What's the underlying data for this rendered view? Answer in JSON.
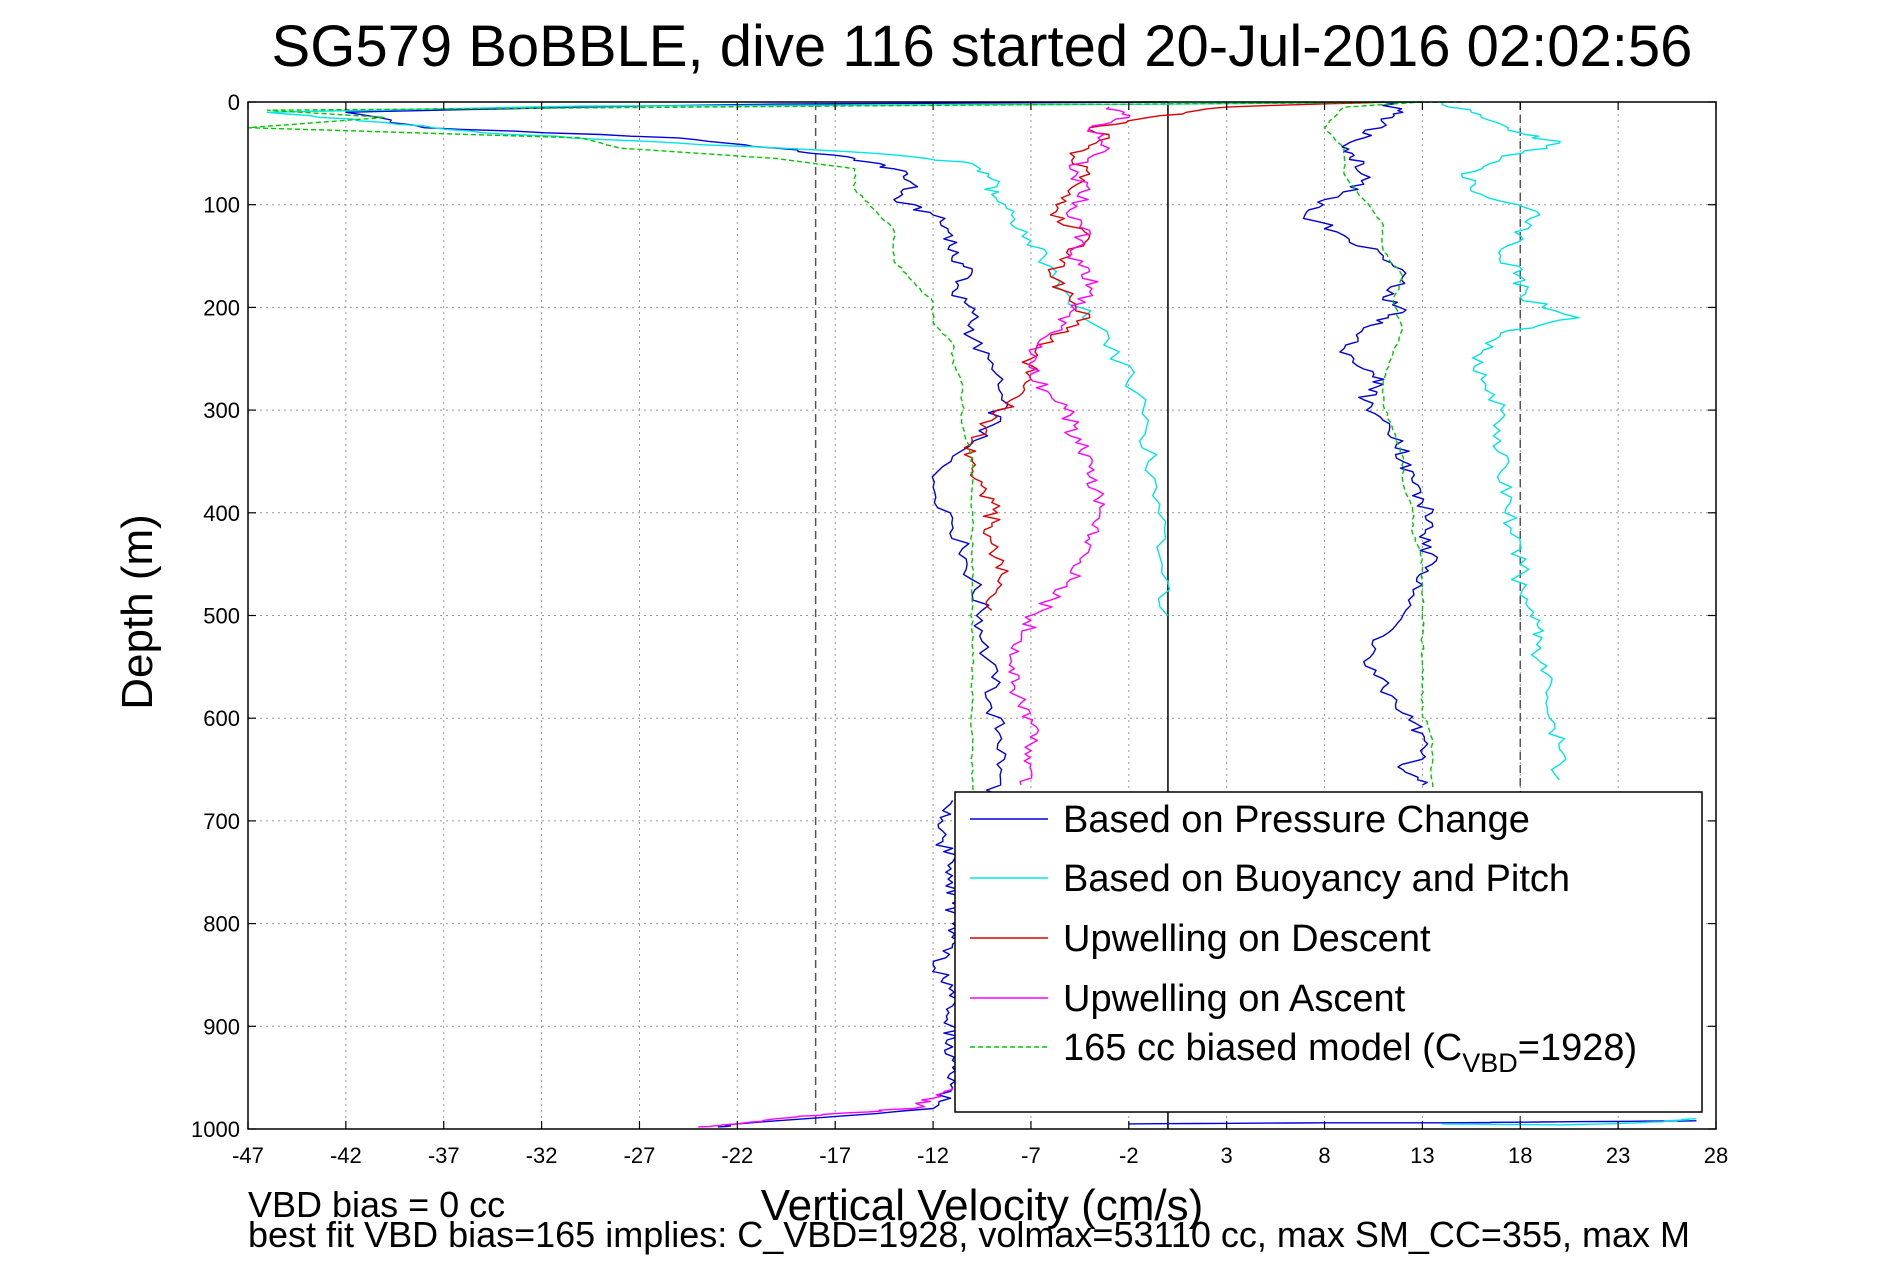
{
  "chart_data": {
    "type": "line",
    "title": "SG579 BoBBLE, dive 116 started 20-Jul-2016 02:02:56",
    "xlabel": "Vertical Velocity (cm/s)",
    "ylabel": "Depth (m)",
    "xlim": [
      -47,
      28
    ],
    "ylim": [
      0,
      1000
    ],
    "y_reversed": true,
    "grid": true,
    "x_ticks": [
      -47,
      -42,
      -37,
      -32,
      -27,
      -22,
      -17,
      -12,
      -7,
      -2,
      3,
      8,
      13,
      18,
      23,
      28
    ],
    "y_ticks": [
      0,
      100,
      200,
      300,
      400,
      500,
      600,
      700,
      800,
      900,
      1000
    ],
    "reference_lines": [
      {
        "x": -18,
        "style": "dashed",
        "color": "#555555"
      },
      {
        "x": 0,
        "style": "solid",
        "color": "#000000"
      },
      {
        "x": 18,
        "style": "dashed",
        "color": "#555555"
      }
    ],
    "legend_position": "lower-right",
    "series": [
      {
        "name": "Based on Pressure Change",
        "color": "#0000e0",
        "style": "solid",
        "points": [
          [
            0,
            0
          ],
          [
            -20,
            2
          ],
          [
            -30,
            5
          ],
          [
            -42,
            10
          ],
          [
            -38,
            25
          ],
          [
            -25,
            35
          ],
          [
            -20,
            45
          ],
          [
            -16,
            55
          ],
          [
            -14,
            65
          ],
          [
            -13,
            80
          ],
          [
            -14,
            95
          ],
          [
            -12,
            110
          ],
          [
            -11,
            130
          ],
          [
            -11,
            150
          ],
          [
            -10,
            165
          ],
          [
            -11,
            185
          ],
          [
            -10,
            205
          ],
          [
            -10,
            230
          ],
          [
            -9,
            260
          ],
          [
            -8.5,
            290
          ],
          [
            -9,
            315
          ],
          [
            -11,
            345
          ],
          [
            -12,
            375
          ],
          [
            -11,
            405
          ],
          [
            -10.5,
            435
          ],
          [
            -10,
            465
          ],
          [
            -9.5,
            495
          ],
          [
            -9.5,
            525
          ],
          [
            -9,
            560
          ],
          [
            -9,
            590
          ],
          [
            -8.5,
            620
          ],
          [
            -8.5,
            650
          ],
          [
            -9,
            680
          ]
        ]
      },
      {
        "name": "Based on Pressure Change",
        "color": "#0000e0",
        "style": "solid",
        "points": [
          [
            11,
            0
          ],
          [
            12,
            10
          ],
          [
            11,
            20
          ],
          [
            10,
            35
          ],
          [
            9,
            48
          ],
          [
            10,
            60
          ],
          [
            10,
            80
          ],
          [
            8,
            95
          ],
          [
            7,
            110
          ],
          [
            9,
            130
          ],
          [
            11,
            150
          ],
          [
            12,
            170
          ],
          [
            11,
            190
          ],
          [
            12,
            205
          ],
          [
            10,
            220
          ],
          [
            9,
            240
          ],
          [
            10,
            260
          ],
          [
            11,
            275
          ],
          [
            10,
            290
          ],
          [
            11,
            310
          ],
          [
            12,
            330
          ],
          [
            12,
            350
          ],
          [
            12.5,
            370
          ],
          [
            13,
            390
          ],
          [
            13.5,
            410
          ],
          [
            13,
            430
          ],
          [
            13.5,
            450
          ],
          [
            13,
            470
          ],
          [
            12,
            500
          ],
          [
            11,
            520
          ],
          [
            10,
            545
          ],
          [
            11,
            570
          ],
          [
            12,
            595
          ],
          [
            13,
            615
          ],
          [
            13,
            635
          ],
          [
            12,
            650
          ],
          [
            13,
            665
          ]
        ]
      },
      {
        "name": "Based on Buoyancy and Pitch",
        "color": "#00e5e5",
        "style": "solid",
        "points": [
          [
            13,
            0
          ],
          [
            0,
            2
          ],
          [
            -30,
            4
          ],
          [
            -46,
            10
          ],
          [
            -40,
            20
          ],
          [
            -35,
            30
          ],
          [
            -25,
            40
          ],
          [
            -15,
            50
          ],
          [
            -10,
            60
          ],
          [
            -9,
            75
          ],
          [
            -9,
            90
          ],
          [
            -8,
            110
          ],
          [
            -7,
            135
          ],
          [
            -6,
            160
          ],
          [
            -5,
            190
          ],
          [
            -3,
            230
          ],
          [
            -2,
            270
          ],
          [
            -1,
            310
          ],
          [
            -1,
            350
          ],
          [
            -0.5,
            400
          ],
          [
            -0.3,
            450
          ],
          [
            0,
            500
          ]
        ]
      },
      {
        "name": "Based on Buoyancy and Pitch",
        "color": "#00e5e5",
        "style": "solid",
        "points": [
          [
            14,
            0
          ],
          [
            16,
            15
          ],
          [
            18,
            30
          ],
          [
            20,
            40
          ],
          [
            17,
            55
          ],
          [
            15,
            70
          ],
          [
            16,
            90
          ],
          [
            19,
            110
          ],
          [
            18,
            130
          ],
          [
            17,
            150
          ],
          [
            18,
            170
          ],
          [
            18,
            190
          ],
          [
            21,
            210
          ],
          [
            17,
            225
          ],
          [
            16,
            245
          ],
          [
            16,
            270
          ],
          [
            17,
            300
          ],
          [
            17,
            330
          ],
          [
            17,
            360
          ],
          [
            17.5,
            390
          ],
          [
            17.5,
            420
          ],
          [
            18,
            450
          ],
          [
            18,
            480
          ],
          [
            19,
            505
          ],
          [
            19,
            525
          ],
          [
            19,
            545
          ],
          [
            19.5,
            570
          ],
          [
            19.5,
            600
          ],
          [
            20,
            630
          ],
          [
            20,
            660
          ]
        ]
      },
      {
        "name": "Upwelling on Descent",
        "color": "#e00000",
        "style": "solid",
        "points": [
          [
            11,
            0
          ],
          [
            3,
            5
          ],
          [
            -1,
            15
          ],
          [
            -4,
            25
          ],
          [
            -3,
            35
          ],
          [
            -5,
            50
          ],
          [
            -4,
            70
          ],
          [
            -5,
            90
          ],
          [
            -6,
            110
          ],
          [
            -4,
            130
          ],
          [
            -5,
            150
          ],
          [
            -6,
            170
          ],
          [
            -5,
            190
          ],
          [
            -4,
            210
          ],
          [
            -6,
            230
          ],
          [
            -7,
            250
          ],
          [
            -7,
            270
          ],
          [
            -8,
            290
          ],
          [
            -9,
            310
          ],
          [
            -10,
            330
          ],
          [
            -10,
            350
          ],
          [
            -9.5,
            370
          ],
          [
            -9,
            390
          ],
          [
            -9,
            410
          ],
          [
            -9,
            430
          ],
          [
            -8.5,
            450
          ],
          [
            -8.5,
            470
          ],
          [
            -9,
            495
          ]
        ]
      },
      {
        "name": "Upwelling on Ascent",
        "color": "#ff00ff",
        "style": "solid",
        "points": [
          [
            -3,
            5
          ],
          [
            -2,
            15
          ],
          [
            -4,
            25
          ],
          [
            -3,
            45
          ],
          [
            -5,
            65
          ],
          [
            -4,
            85
          ],
          [
            -5,
            105
          ],
          [
            -4,
            125
          ],
          [
            -5,
            145
          ],
          [
            -4,
            165
          ],
          [
            -4,
            185
          ],
          [
            -5,
            205
          ],
          [
            -6,
            225
          ],
          [
            -7,
            245
          ],
          [
            -7,
            265
          ],
          [
            -6,
            285
          ],
          [
            -5,
            305
          ],
          [
            -5,
            325
          ],
          [
            -4,
            345
          ],
          [
            -4,
            365
          ],
          [
            -3.5,
            385
          ],
          [
            -3.5,
            405
          ],
          [
            -4,
            425
          ],
          [
            -4.5,
            445
          ],
          [
            -5,
            465
          ],
          [
            -6,
            485
          ],
          [
            -7,
            505
          ],
          [
            -7.5,
            525
          ],
          [
            -8,
            545
          ],
          [
            -8,
            565
          ],
          [
            -7.5,
            585
          ],
          [
            -7,
            605
          ],
          [
            -7,
            625
          ],
          [
            -7,
            645
          ],
          [
            -7.5,
            665
          ]
        ]
      },
      {
        "name": "165 cc biased model (C_VBD=1928)",
        "color": "#00c800",
        "style": "dashed",
        "points": [
          [
            15,
            0
          ],
          [
            -10,
            3
          ],
          [
            -46,
            8
          ],
          [
            -40,
            15
          ],
          [
            -47,
            25
          ],
          [
            -30,
            35
          ],
          [
            -28,
            45
          ],
          [
            -20,
            55
          ],
          [
            -16,
            65
          ],
          [
            -16,
            85
          ],
          [
            -15,
            105
          ],
          [
            -14,
            125
          ],
          [
            -14,
            155
          ],
          [
            -13,
            175
          ],
          [
            -12,
            195
          ],
          [
            -12,
            215
          ],
          [
            -11,
            235
          ],
          [
            -11,
            255
          ],
          [
            -10.5,
            275
          ],
          [
            -10.5,
            295
          ],
          [
            -10.5,
            315
          ],
          [
            -10,
            345
          ],
          [
            -10,
            375
          ],
          [
            -10,
            405
          ],
          [
            -10,
            435
          ],
          [
            -10,
            465
          ],
          [
            -10,
            495
          ],
          [
            -10,
            525
          ],
          [
            -10,
            555
          ],
          [
            -10,
            585
          ],
          [
            -10,
            615
          ],
          [
            -10,
            645
          ],
          [
            -10,
            675
          ]
        ]
      },
      {
        "name": "165 cc biased model (C_VBD=1928)",
        "color": "#00c800",
        "style": "dashed",
        "points": [
          [
            13,
            0
          ],
          [
            9,
            5
          ],
          [
            8,
            25
          ],
          [
            9,
            45
          ],
          [
            9,
            70
          ],
          [
            10,
            95
          ],
          [
            11,
            120
          ],
          [
            11,
            145
          ],
          [
            12,
            170
          ],
          [
            11.5,
            195
          ],
          [
            12,
            220
          ],
          [
            11.5,
            245
          ],
          [
            11,
            270
          ],
          [
            11,
            295
          ],
          [
            11.5,
            320
          ],
          [
            12,
            345
          ],
          [
            12,
            370
          ],
          [
            12.5,
            395
          ],
          [
            12.5,
            420
          ],
          [
            13,
            445
          ],
          [
            13,
            470
          ],
          [
            13,
            495
          ],
          [
            13,
            520
          ],
          [
            13,
            545
          ],
          [
            13,
            570
          ],
          [
            13,
            595
          ],
          [
            13.5,
            620
          ],
          [
            13.5,
            645
          ],
          [
            13.5,
            670
          ]
        ]
      },
      {
        "name": "Based on Pressure Change",
        "color": "#0000e0",
        "style": "solid",
        "points": [
          [
            -11,
            680
          ],
          [
            -11.5,
            700
          ],
          [
            -11.5,
            720
          ],
          [
            -11,
            740
          ],
          [
            -11,
            760
          ],
          [
            -11,
            780
          ],
          [
            -11,
            800
          ],
          [
            -11,
            820
          ],
          [
            -12,
            840
          ],
          [
            -11,
            860
          ],
          [
            -11,
            880
          ],
          [
            -11,
            900
          ],
          [
            -11,
            920
          ],
          [
            -11,
            940
          ],
          [
            -11,
            960
          ],
          [
            -12,
            980
          ],
          [
            -22,
            995
          ],
          [
            -23,
            998
          ]
        ]
      },
      {
        "name": "Upwelling on Ascent",
        "color": "#ff00ff",
        "style": "solid",
        "points": [
          [
            -11,
            960
          ],
          [
            -12,
            970
          ],
          [
            -13,
            980
          ],
          [
            -17,
            985
          ],
          [
            -20,
            990
          ],
          [
            -22,
            995
          ],
          [
            -24,
            998
          ]
        ]
      },
      {
        "name": "Based on Pressure Change",
        "color": "#0000e0",
        "style": "solid",
        "points": [
          [
            -2,
            995
          ],
          [
            8,
            994
          ],
          [
            14,
            994
          ],
          [
            20,
            993
          ],
          [
            27,
            992
          ]
        ]
      },
      {
        "name": "Based on Buoyancy and Pitch",
        "color": "#00e5e5",
        "style": "solid",
        "points": [
          [
            14,
            995
          ],
          [
            20,
            996
          ],
          [
            24,
            994
          ],
          [
            26,
            992
          ],
          [
            27,
            990
          ]
        ]
      }
    ],
    "legend_entries": [
      {
        "label": "Based on Pressure Change",
        "color": "#0000e0",
        "style": "solid"
      },
      {
        "label": "Based on Buoyancy and Pitch",
        "color": "#00e5e5",
        "style": "solid"
      },
      {
        "label": "Upwelling on Descent",
        "color": "#e00000",
        "style": "solid"
      },
      {
        "label": "Upwelling on Ascent",
        "color": "#ff00ff",
        "style": "solid"
      },
      {
        "label_main": "165 cc biased model (C",
        "label_sub": "VBD",
        "label_end": "=1928)",
        "color": "#00c800",
        "style": "dashed"
      }
    ],
    "annotations": [
      "VBD bias = 0 cc",
      "best fit VBD bias=165 implies: C_VBD=1928, volmax=53110 cc, max SM_CC=355, max M"
    ]
  }
}
